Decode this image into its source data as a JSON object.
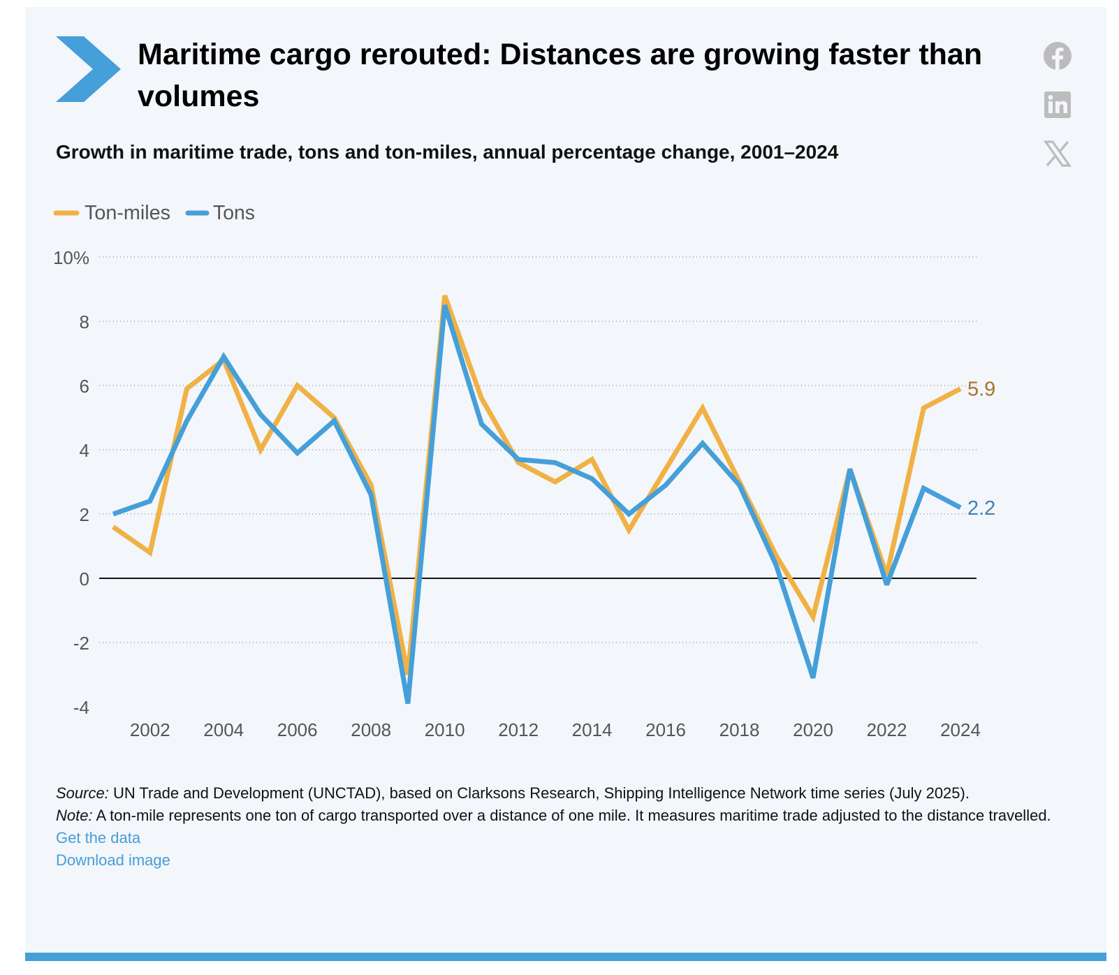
{
  "title": "Maritime cargo rerouted: Distances are growing faster than volumes",
  "subtitle": "Growth in maritime trade, tons and ton-miles, annual percentage change, 2001–2024",
  "social": [
    "facebook-icon",
    "linkedin-icon",
    "x-icon"
  ],
  "colors": {
    "accent": "#459fd8",
    "ton_miles": "#f0b145",
    "tons": "#459fd8",
    "ton_miles_label": "#a6762a",
    "tons_label": "#3f82b0"
  },
  "chart_data": {
    "type": "line",
    "x": [
      2001,
      2002,
      2003,
      2004,
      2005,
      2006,
      2007,
      2008,
      2009,
      2010,
      2011,
      2012,
      2013,
      2014,
      2015,
      2016,
      2017,
      2018,
      2019,
      2020,
      2021,
      2022,
      2023,
      2024
    ],
    "series": [
      {
        "name": "Ton-miles",
        "color": "#f0b145",
        "values": [
          1.6,
          0.8,
          5.9,
          6.8,
          4.0,
          6.0,
          5.0,
          2.9,
          -3.0,
          8.8,
          5.6,
          3.6,
          3.0,
          3.7,
          1.5,
          3.4,
          5.3,
          3.0,
          0.7,
          -1.2,
          3.4,
          0.1,
          5.3,
          5.9
        ]
      },
      {
        "name": "Tons",
        "color": "#459fd8",
        "values": [
          2.0,
          2.4,
          4.9,
          6.9,
          5.1,
          3.9,
          4.9,
          2.6,
          -3.9,
          8.5,
          4.8,
          3.7,
          3.6,
          3.1,
          2.0,
          2.9,
          4.2,
          2.9,
          0.4,
          -3.1,
          3.4,
          -0.2,
          2.8,
          2.2
        ]
      }
    ],
    "end_labels": [
      "5.9",
      "2.2"
    ],
    "ylim": [
      -4,
      10
    ],
    "y_ticks": [
      -4,
      -2,
      0,
      2,
      4,
      6,
      8,
      10
    ],
    "y_tick_labels": [
      "-4",
      "-2",
      "0",
      "2",
      "4",
      "6",
      "8",
      "10%"
    ],
    "x_ticks": [
      2002,
      2004,
      2006,
      2008,
      2010,
      2012,
      2014,
      2016,
      2018,
      2020,
      2022,
      2024
    ],
    "x_tick_labels": [
      "2002",
      "2004",
      "2006",
      "2008",
      "2010",
      "2012",
      "2014",
      "2016",
      "2018",
      "2020",
      "2022",
      "2024"
    ],
    "grid": "horizontal dotted",
    "legend": "top-left"
  },
  "notes": {
    "source_label": "Source:",
    "source_text": " UN Trade and Development (UNCTAD), based on Clarksons Research, Shipping Intelligence Network time series (July 2025).",
    "note_label": "Note:",
    "note_text": " A ton-mile represents one ton of cargo transported over a distance of one mile. It measures maritime trade adjusted to the distance travelled.",
    "get_data": "Get the data",
    "download_image": "Download image"
  }
}
